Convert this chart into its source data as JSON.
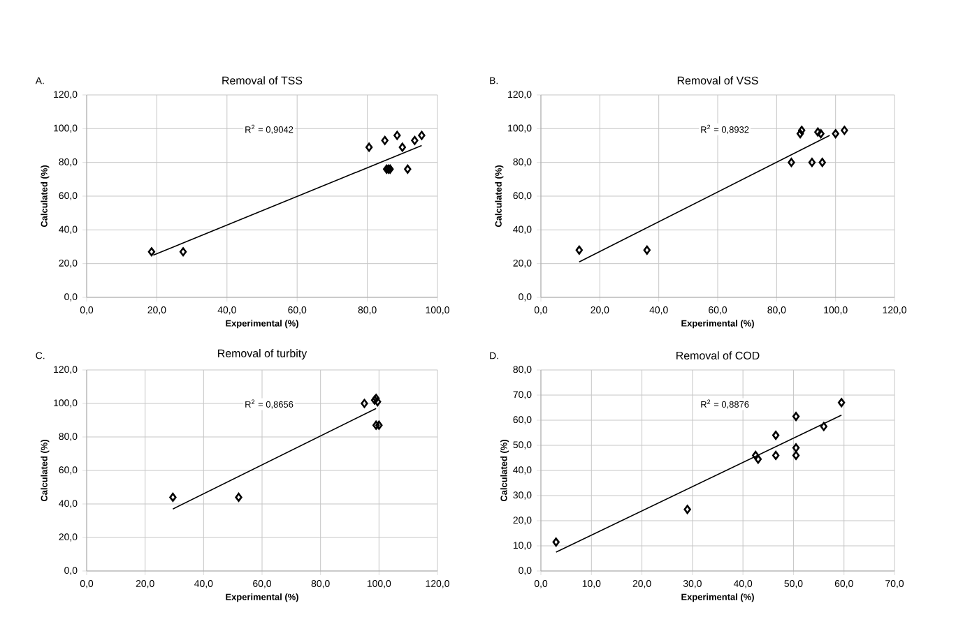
{
  "chart_data": [
    {
      "type": "scatter",
      "title": "Removal of TSS",
      "xlabel": "Experimental (%)",
      "ylabel": "Calculated (%)",
      "annotations": [
        "A.",
        "R$^{2}$ = 0,9042"
      ],
      "grid": true,
      "xlim": [
        0,
        100
      ],
      "ylim": [
        0,
        120
      ],
      "xticks": [
        {
          "value": 0,
          "label": "0,0"
        },
        {
          "value": 20,
          "label": "20,0"
        },
        {
          "value": 40,
          "label": "40,0"
        },
        {
          "value": 60,
          "label": "60,0"
        },
        {
          "value": 80,
          "label": "80,0"
        },
        {
          "value": 100,
          "label": "100,0"
        }
      ],
      "yticks": [
        {
          "value": 0,
          "label": "0,0"
        },
        {
          "value": 20,
          "label": "20,0"
        },
        {
          "value": 40,
          "label": "40,0"
        },
        {
          "value": 60,
          "label": "60,0"
        },
        {
          "value": 80,
          "label": "80,0"
        },
        {
          "value": 100,
          "label": "100,0"
        },
        {
          "value": 120,
          "label": "120,0"
        }
      ],
      "series": [
        {
          "marker": "diamond",
          "color": "#000000",
          "x": [
            18.5,
            27.5,
            80.5,
            85,
            88.5,
            90,
            93.5,
            95.5,
            85.5,
            86,
            86.5,
            91.5
          ],
          "values": [
            27,
            27,
            89,
            93,
            96,
            89,
            93,
            96,
            76,
            76,
            76,
            76
          ]
        },
        {
          "type": "line",
          "color": "#000000",
          "x": [
            19,
            95.5
          ],
          "values": [
            25,
            90
          ]
        }
      ]
    },
    {
      "type": "scatter",
      "title": "Removal of VSS",
      "xlabel": "Experimental (%)",
      "ylabel": "Calculated (%)",
      "annotations": [
        "B.",
        "R$^{2}$ = 0,8932"
      ],
      "grid": true,
      "xlim": [
        0,
        120
      ],
      "ylim": [
        0,
        120
      ],
      "xticks": [
        {
          "value": 0,
          "label": "0,0"
        },
        {
          "value": 20,
          "label": "20,0"
        },
        {
          "value": 40,
          "label": "40,0"
        },
        {
          "value": 60,
          "label": "60,0"
        },
        {
          "value": 80,
          "label": "80,0"
        },
        {
          "value": 100,
          "label": "100,0"
        },
        {
          "value": 120,
          "label": "120,0"
        }
      ],
      "yticks": [
        {
          "value": 0,
          "label": "0,0"
        },
        {
          "value": 20,
          "label": "20,0"
        },
        {
          "value": 40,
          "label": "40,0"
        },
        {
          "value": 60,
          "label": "60,0"
        },
        {
          "value": 80,
          "label": "80,0"
        },
        {
          "value": 100,
          "label": "100,0"
        },
        {
          "value": 120,
          "label": "120,0"
        }
      ],
      "series": [
        {
          "marker": "diamond",
          "color": "#000000",
          "x": [
            13,
            36,
            85,
            88,
            88.5,
            94,
            95,
            92,
            95.5,
            100,
            103
          ],
          "values": [
            28,
            28,
            80,
            97,
            99,
            98,
            97,
            80,
            80,
            97,
            99
          ]
        },
        {
          "type": "line",
          "color": "#000000",
          "x": [
            13,
            98
          ],
          "values": [
            21,
            96
          ]
        }
      ]
    },
    {
      "type": "scatter",
      "title": "Removal of turbity",
      "xlabel": "Experimental (%)",
      "ylabel": "Calculated (%)",
      "annotations": [
        "C.",
        "R$^{2}$ = 0,8656"
      ],
      "grid": true,
      "xlim": [
        0,
        120
      ],
      "ylim": [
        0,
        120
      ],
      "xticks": [
        {
          "value": 0,
          "label": "0,0"
        },
        {
          "value": 20,
          "label": "20,0"
        },
        {
          "value": 40,
          "label": "40,0"
        },
        {
          "value": 60,
          "label": "60,0"
        },
        {
          "value": 80,
          "label": "80,0"
        },
        {
          "value": 100,
          "label": "100,0"
        },
        {
          "value": 120,
          "label": "120,0"
        }
      ],
      "yticks": [
        {
          "value": 0,
          "label": "0,0"
        },
        {
          "value": 20,
          "label": "20,0"
        },
        {
          "value": 40,
          "label": "40,0"
        },
        {
          "value": 60,
          "label": "60,0"
        },
        {
          "value": 80,
          "label": "80,0"
        },
        {
          "value": 100,
          "label": "100,0"
        },
        {
          "value": 120,
          "label": "120,0"
        }
      ],
      "series": [
        {
          "marker": "diamond",
          "color": "#000000",
          "x": [
            29.5,
            52,
            95,
            98.5,
            99,
            99.5,
            99,
            100
          ],
          "values": [
            44,
            44,
            100,
            102,
            103,
            101,
            87,
            87
          ]
        },
        {
          "type": "line",
          "color": "#000000",
          "x": [
            29.5,
            99
          ],
          "values": [
            37,
            97
          ]
        }
      ]
    },
    {
      "type": "scatter",
      "title": "Removal of COD",
      "xlabel": "Experimental (%)",
      "ylabel": "Calculated (%)",
      "annotations": [
        "D.",
        "R$^{2}$ = 0,8876"
      ],
      "grid": true,
      "xlim": [
        0,
        70
      ],
      "ylim": [
        0,
        80
      ],
      "xticks": [
        {
          "value": 0,
          "label": "0,0"
        },
        {
          "value": 10,
          "label": "10,0"
        },
        {
          "value": 20,
          "label": "20,0"
        },
        {
          "value": 30,
          "label": "30,0"
        },
        {
          "value": 40,
          "label": "40,0"
        },
        {
          "value": 50,
          "label": "50,0"
        },
        {
          "value": 60,
          "label": "60,0"
        },
        {
          "value": 70,
          "label": "70,0"
        }
      ],
      "yticks": [
        {
          "value": 0,
          "label": "0,0"
        },
        {
          "value": 10,
          "label": "10,0"
        },
        {
          "value": 20,
          "label": "20,0"
        },
        {
          "value": 30,
          "label": "30,0"
        },
        {
          "value": 40,
          "label": "40,0"
        },
        {
          "value": 50,
          "label": "50,0"
        },
        {
          "value": 60,
          "label": "60,0"
        },
        {
          "value": 70,
          "label": "70,0"
        },
        {
          "value": 80,
          "label": "80,0"
        }
      ],
      "series": [
        {
          "marker": "diamond",
          "color": "#000000",
          "x": [
            3,
            29,
            42.5,
            43,
            46.5,
            46.5,
            50.5,
            50.5,
            50.5,
            56,
            59.5
          ],
          "values": [
            11.5,
            24.5,
            46,
            44.5,
            54,
            46,
            61.5,
            49,
            46,
            57.5,
            67
          ]
        },
        {
          "type": "line",
          "color": "#000000",
          "x": [
            3,
            59.5
          ],
          "values": [
            7.5,
            62
          ]
        }
      ]
    }
  ]
}
